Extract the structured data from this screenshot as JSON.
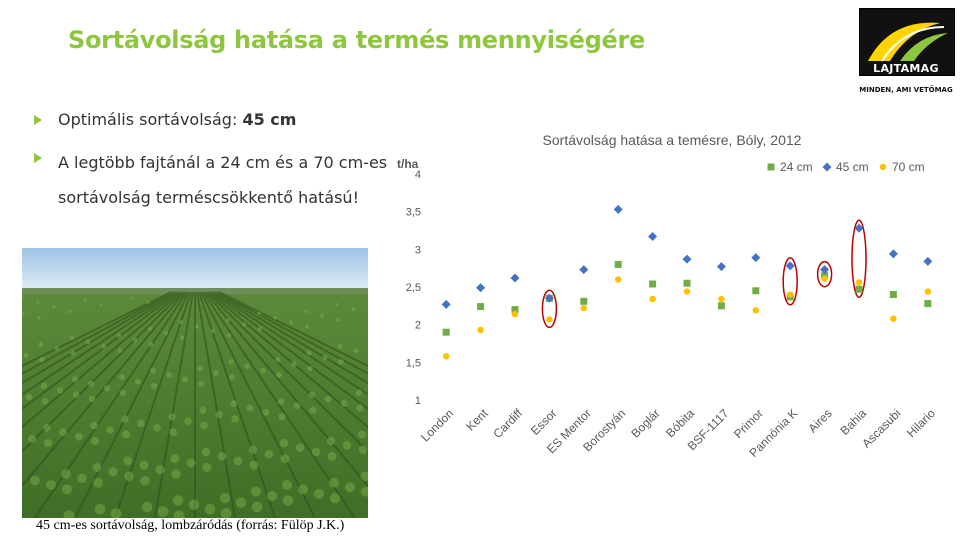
{
  "slide": {
    "title": "Sortávolság hatása a termés mennyiségére",
    "bullets": [
      {
        "prefix": "Optimális sortávolság: ",
        "bold": "45 cm"
      },
      {
        "text": "A legtöbb fajtánál a 24 cm és a 70 cm-es sortávolság terméscsökkentő hatású!"
      }
    ],
    "caption": "45 cm-es sortávolság, lombzáródás (forrás: Fülöp J.K.)"
  },
  "logo": {
    "name": "LAJTAMAG",
    "tagline": "MINDEN, AMI VETŐMAG"
  },
  "chart_data": {
    "type": "scatter",
    "title": "Sortávolság hatása a temésre, Bóly, 2012",
    "ylabel": "t/ha",
    "ylim": [
      1,
      4
    ],
    "yticks": [
      "1",
      "1,5",
      "2",
      "2,5",
      "3",
      "3,5",
      "4"
    ],
    "categories": [
      "London",
      "Kent",
      "Cardiff",
      "Essor",
      "ES Mentor",
      "Borostyán",
      "Boglár",
      "Bóbita",
      "BSF-1117",
      "Primor",
      "Pannónia K",
      "Aires",
      "Bahia",
      "Ascasubi",
      "Hilario"
    ],
    "series": [
      {
        "name": "24 cm",
        "marker": "square",
        "color": "#70ad47",
        "values": [
          1.9,
          2.24,
          2.2,
          2.35,
          2.31,
          2.8,
          2.54,
          2.55,
          2.25,
          2.45,
          2.37,
          2.65,
          2.47,
          2.4,
          2.28
        ]
      },
      {
        "name": "45 cm",
        "marker": "diamond",
        "color": "#4472c4",
        "values": [
          2.27,
          2.49,
          2.62,
          2.35,
          2.73,
          3.53,
          3.17,
          2.87,
          2.77,
          2.89,
          2.78,
          2.73,
          3.28,
          2.94,
          2.84
        ]
      },
      {
        "name": "70 cm",
        "marker": "circle",
        "color": "#ffc000",
        "values": [
          1.58,
          1.93,
          2.14,
          2.07,
          2.22,
          2.6,
          2.34,
          2.44,
          2.34,
          2.19,
          2.4,
          2.61,
          2.56,
          2.08,
          2.44
        ]
      }
    ],
    "highlighted": [
      "Essor",
      "Pannónia K",
      "Aires",
      "Bahia"
    ],
    "highlight_color": "#c00000",
    "legend": "top-right",
    "grid": false
  }
}
